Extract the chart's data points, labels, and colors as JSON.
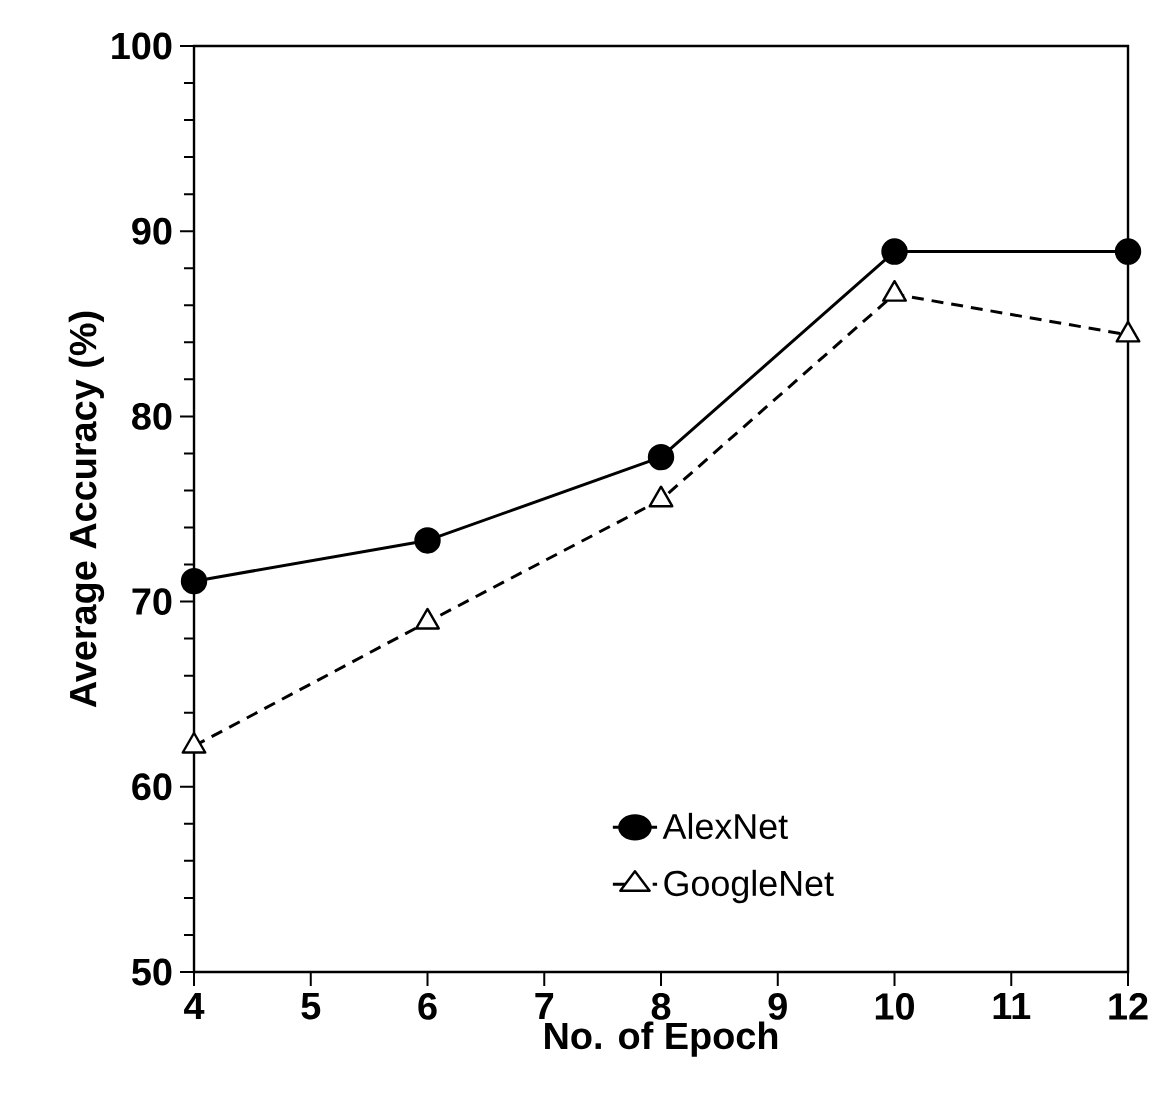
{
  "chart_data": {
    "type": "line",
    "xlabel": "No. of Epoch",
    "ylabel": "Average Accuracy (%)",
    "x": [
      4,
      6,
      8,
      10,
      12
    ],
    "series": [
      {
        "name": "AlexNet",
        "color": "#000000",
        "values": [
          71.1,
          73.3,
          77.8,
          88.9,
          88.9
        ],
        "marker": "circle",
        "line_style": "solid"
      },
      {
        "name": "GoogleNet",
        "color": "#000000",
        "values": [
          62.2,
          68.9,
          75.5,
          86.6,
          84.4
        ],
        "marker": "triangle",
        "line_style": "dashed"
      }
    ],
    "xlim": [
      4,
      12
    ],
    "xticks": [
      4,
      5,
      6,
      7,
      8,
      9,
      10,
      11,
      12
    ],
    "ylim": [
      50,
      100
    ],
    "yticks": [
      50,
      60,
      70,
      80,
      90,
      100
    ],
    "legend": "bottom right",
    "grid": false
  }
}
